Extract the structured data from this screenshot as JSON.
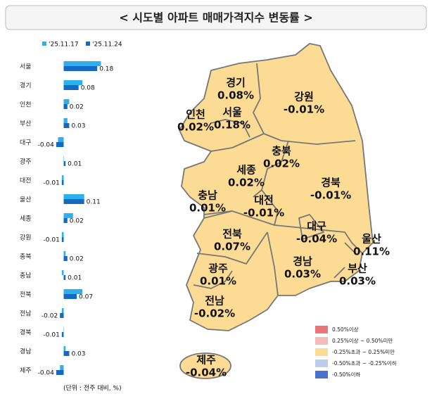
{
  "title": "< 시도별 아파트 매매가격지수 변동률 >",
  "chart_data": {
    "type": "bar",
    "orientation": "horizontal",
    "categories": [
      "서울",
      "경기",
      "인천",
      "부산",
      "대구",
      "광주",
      "대전",
      "울산",
      "세종",
      "강원",
      "충북",
      "충남",
      "전북",
      "전남",
      "경북",
      "경남",
      "제주"
    ],
    "series": [
      {
        "name": "'25.11.17",
        "color": "#2eb0ef",
        "values": [
          0.2,
          0.1,
          0.03,
          0.02,
          -0.03,
          0.0,
          -0.01,
          0.11,
          0.05,
          -0.01,
          0.01,
          -0.01,
          0.1,
          -0.01,
          0.0,
          0.01,
          -0.02
        ]
      },
      {
        "name": "'25.11.24",
        "color": "#1569c1",
        "values": [
          0.18,
          0.08,
          0.02,
          0.03,
          -0.04,
          0.01,
          -0.01,
          0.11,
          0.02,
          -0.01,
          0.02,
          0.01,
          0.07,
          -0.02,
          -0.01,
          0.03,
          -0.04
        ]
      }
    ],
    "xlim": [
      -0.1,
      0.3
    ],
    "note": "(단위 : 전주 대비, %)"
  },
  "map": {
    "regions": [
      {
        "name": "경기",
        "value_label": "0.08%"
      },
      {
        "name": "강원",
        "value_label": "-0.01%"
      },
      {
        "name": "인천",
        "value_label": "0.02%"
      },
      {
        "name": "서울",
        "value_label": "0.18%"
      },
      {
        "name": "충북",
        "value_label": "0.02%"
      },
      {
        "name": "세종",
        "value_label": "0.02%"
      },
      {
        "name": "경북",
        "value_label": "-0.01%"
      },
      {
        "name": "충남",
        "value_label": "0.01%"
      },
      {
        "name": "대전",
        "value_label": "-0.01%"
      },
      {
        "name": "대구",
        "value_label": "-0.04%"
      },
      {
        "name": "울산",
        "value_label": "0.11%"
      },
      {
        "name": "전북",
        "value_label": "0.07%"
      },
      {
        "name": "경남",
        "value_label": "0.03%"
      },
      {
        "name": "부산",
        "value_label": "0.03%"
      },
      {
        "name": "광주",
        "value_label": "0.01%"
      },
      {
        "name": "전남",
        "value_label": "-0.02%"
      },
      {
        "name": "제주",
        "value_label": "-0.04%"
      }
    ],
    "legend": [
      {
        "label": "0.50%이상",
        "color": "#e8767a"
      },
      {
        "label": "0.25%이상 ~ 0.50%미만",
        "color": "#f5bcbc"
      },
      {
        "label": "-0.25%초과 ~ 0.25%미만",
        "color": "#fcdc94"
      },
      {
        "label": "-0.50%초과 ~ -0.25%이하",
        "color": "#bfcbea"
      },
      {
        "label": "-0.50%이하",
        "color": "#4a70cb"
      }
    ]
  }
}
